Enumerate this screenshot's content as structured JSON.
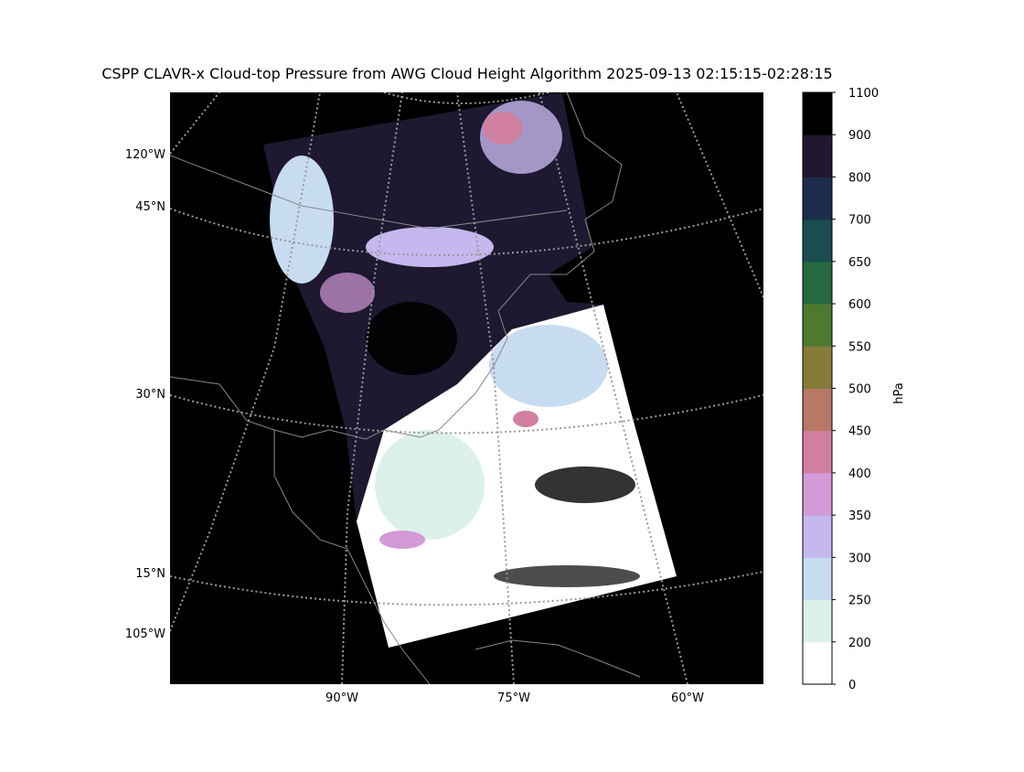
{
  "title": "CSPP CLAVR-x Cloud-top Pressure from AWG Cloud Height Algorithm 2025-09-13 02:15:15-02:28:15",
  "map": {
    "left_labels": [
      "120°W",
      "45°N",
      "30°N",
      "15°N",
      "105°W"
    ],
    "bottom_labels": [
      "90°W",
      "75°W",
      "60°W"
    ]
  },
  "colorbar": {
    "label": "hPa",
    "ticks": [
      0,
      200,
      250,
      300,
      350,
      400,
      450,
      500,
      550,
      600,
      650,
      700,
      800,
      900,
      1100
    ],
    "colors": [
      "#ffffff",
      "#ddf1ec",
      "#c8dcf1",
      "#c4b8ef",
      "#d39ad8",
      "#d17fa1",
      "#b87866",
      "#877b3a",
      "#4e7a30",
      "#256a40",
      "#1a4c50",
      "#1d2c4c",
      "#201830",
      "#000000"
    ]
  }
}
